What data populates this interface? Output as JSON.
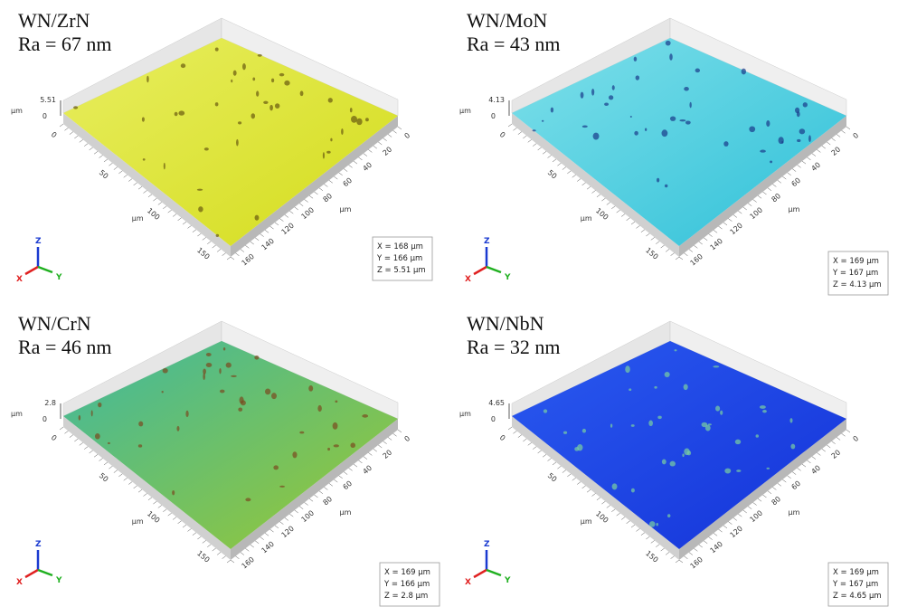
{
  "panels": [
    {
      "title": "WN/ZrN",
      "ra": "Ra = 67 nm",
      "z_max": "5.51",
      "z_min": "0",
      "z_unit": "µm",
      "x_ticks": [
        "0",
        "50",
        "100",
        "150"
      ],
      "x_unit": "µm",
      "y_ticks": [
        "0",
        "20",
        "40",
        "60",
        "80",
        "100",
        "120",
        "140",
        "160"
      ],
      "y_unit": "µm",
      "dims": [
        "X = 168 µm",
        "Y = 166 µm",
        "Z = 5.51 µm"
      ],
      "triad": [
        "Z",
        "X",
        "Y"
      ]
    },
    {
      "title": "WN/MoN",
      "ra": "Ra = 43 nm",
      "z_max": "4.13",
      "z_min": "0",
      "z_unit": "µm",
      "x_ticks": [
        "0",
        "50",
        "100",
        "150"
      ],
      "x_unit": "µm",
      "y_ticks": [
        "0",
        "20",
        "40",
        "60",
        "80",
        "100",
        "120",
        "140",
        "160"
      ],
      "y_unit": "µm",
      "dims": [
        "X = 169 µm",
        "Y = 167 µm",
        "Z = 4.13 µm"
      ],
      "triad": [
        "Z",
        "X",
        "Y"
      ]
    },
    {
      "title": "WN/CrN",
      "ra": "Ra = 46 nm",
      "z_max": "2.8",
      "z_min": "0",
      "z_unit": "µm",
      "x_ticks": [
        "0",
        "50",
        "100",
        "150"
      ],
      "x_unit": "µm",
      "y_ticks": [
        "0",
        "20",
        "40",
        "60",
        "80",
        "100",
        "120",
        "140",
        "160"
      ],
      "y_unit": "µm",
      "dims": [
        "X = 169 µm",
        "Y = 166 µm",
        "Z = 2.8 µm"
      ],
      "triad": [
        "Z",
        "X",
        "Y"
      ]
    },
    {
      "title": "WN/NbN",
      "ra": "Ra = 32 nm",
      "z_max": "4.65",
      "z_min": "0",
      "z_unit": "µm",
      "x_ticks": [
        "0",
        "50",
        "100",
        "150"
      ],
      "x_unit": "µm",
      "y_ticks": [
        "0",
        "20",
        "40",
        "60",
        "80",
        "100",
        "120",
        "140",
        "160"
      ],
      "y_unit": "µm",
      "dims": [
        "X = 169 µm",
        "Y = 167 µm",
        "Z = 4.65 µm"
      ],
      "triad": [
        "Z",
        "X",
        "Y"
      ]
    }
  ]
}
